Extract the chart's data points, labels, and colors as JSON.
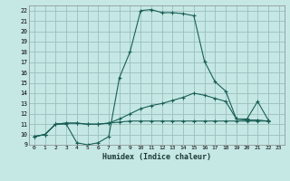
{
  "xlabel": "Humidex (Indice chaleur)",
  "background_color": "#c5e8e5",
  "grid_color": "#9abfbc",
  "line_color": "#1a5f55",
  "xlim": [
    -0.5,
    23.5
  ],
  "ylim": [
    9,
    22.5
  ],
  "xticks": [
    0,
    1,
    2,
    3,
    4,
    5,
    6,
    7,
    8,
    9,
    10,
    11,
    12,
    13,
    14,
    15,
    16,
    17,
    18,
    19,
    20,
    21,
    22,
    23
  ],
  "yticks": [
    9,
    10,
    11,
    12,
    13,
    14,
    15,
    16,
    17,
    18,
    19,
    20,
    21,
    22
  ],
  "line1_x": [
    0,
    1,
    2,
    3,
    4,
    5,
    6,
    7,
    8,
    9,
    10,
    11,
    12,
    13,
    14,
    15,
    16,
    17,
    18,
    19,
    20,
    21,
    22
  ],
  "line1_y": [
    9.8,
    10.0,
    11.0,
    11.0,
    9.2,
    9.0,
    9.2,
    9.8,
    15.5,
    18.0,
    22.0,
    22.1,
    21.8,
    21.8,
    21.7,
    21.5,
    17.1,
    15.1,
    14.2,
    11.5,
    11.5,
    13.2,
    11.4
  ],
  "line2_x": [
    0,
    1,
    2,
    3,
    4,
    5,
    6,
    7,
    8,
    9,
    10,
    11,
    12,
    13,
    14,
    15,
    16,
    17,
    18,
    19,
    20,
    21,
    22
  ],
  "line2_y": [
    9.8,
    10.0,
    11.0,
    11.1,
    11.1,
    11.0,
    11.0,
    11.1,
    11.5,
    12.0,
    12.5,
    12.8,
    13.0,
    13.3,
    13.6,
    14.0,
    13.8,
    13.5,
    13.2,
    11.5,
    11.4,
    11.4,
    11.3
  ],
  "line3_x": [
    0,
    1,
    2,
    3,
    4,
    5,
    6,
    7,
    8,
    9,
    10,
    11,
    12,
    13,
    14,
    15,
    16,
    17,
    18,
    19,
    20,
    21,
    22
  ],
  "line3_y": [
    9.8,
    10.0,
    11.0,
    11.1,
    11.1,
    11.0,
    11.0,
    11.1,
    11.2,
    11.3,
    11.3,
    11.3,
    11.3,
    11.3,
    11.3,
    11.3,
    11.3,
    11.3,
    11.3,
    11.3,
    11.3,
    11.3,
    11.3
  ]
}
